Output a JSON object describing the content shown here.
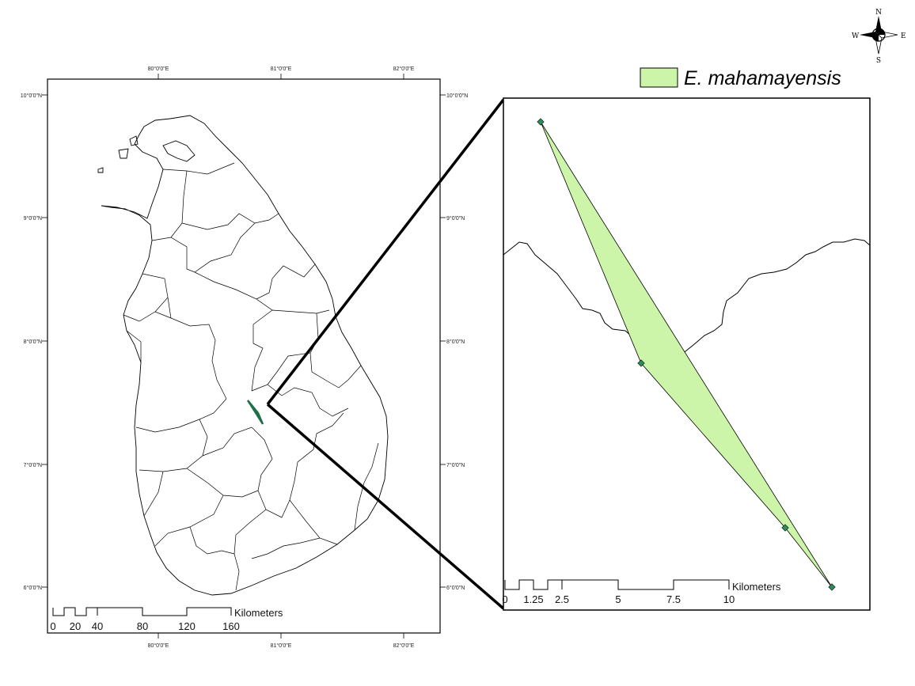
{
  "compass": {
    "n": "N",
    "s": "S",
    "e": "E",
    "w": "W"
  },
  "legend": {
    "label": "E. mahamayensis",
    "swatch_color": "#ccf5a9"
  },
  "main_map": {
    "lon_ticks": [
      "80°0'0\"E",
      "81°0'0\"E",
      "82°0'0\"E"
    ],
    "lat_ticks": [
      "10°0'0\"N",
      "9°0'0\"N",
      "8°0'0\"N",
      "7°0'0\"N",
      "6°0'0\"N"
    ],
    "scale_unit": "Kilometers",
    "scale_labels": [
      "0",
      "20",
      "40",
      "80",
      "120",
      "160"
    ]
  },
  "inset_map": {
    "scale_unit": "Kilometers",
    "scale_labels": [
      "0",
      "1.25",
      "2.5",
      "5",
      "7.5",
      "10"
    ],
    "polygon_fill": "#ccf5a9",
    "point_color": "#2e8b57"
  }
}
